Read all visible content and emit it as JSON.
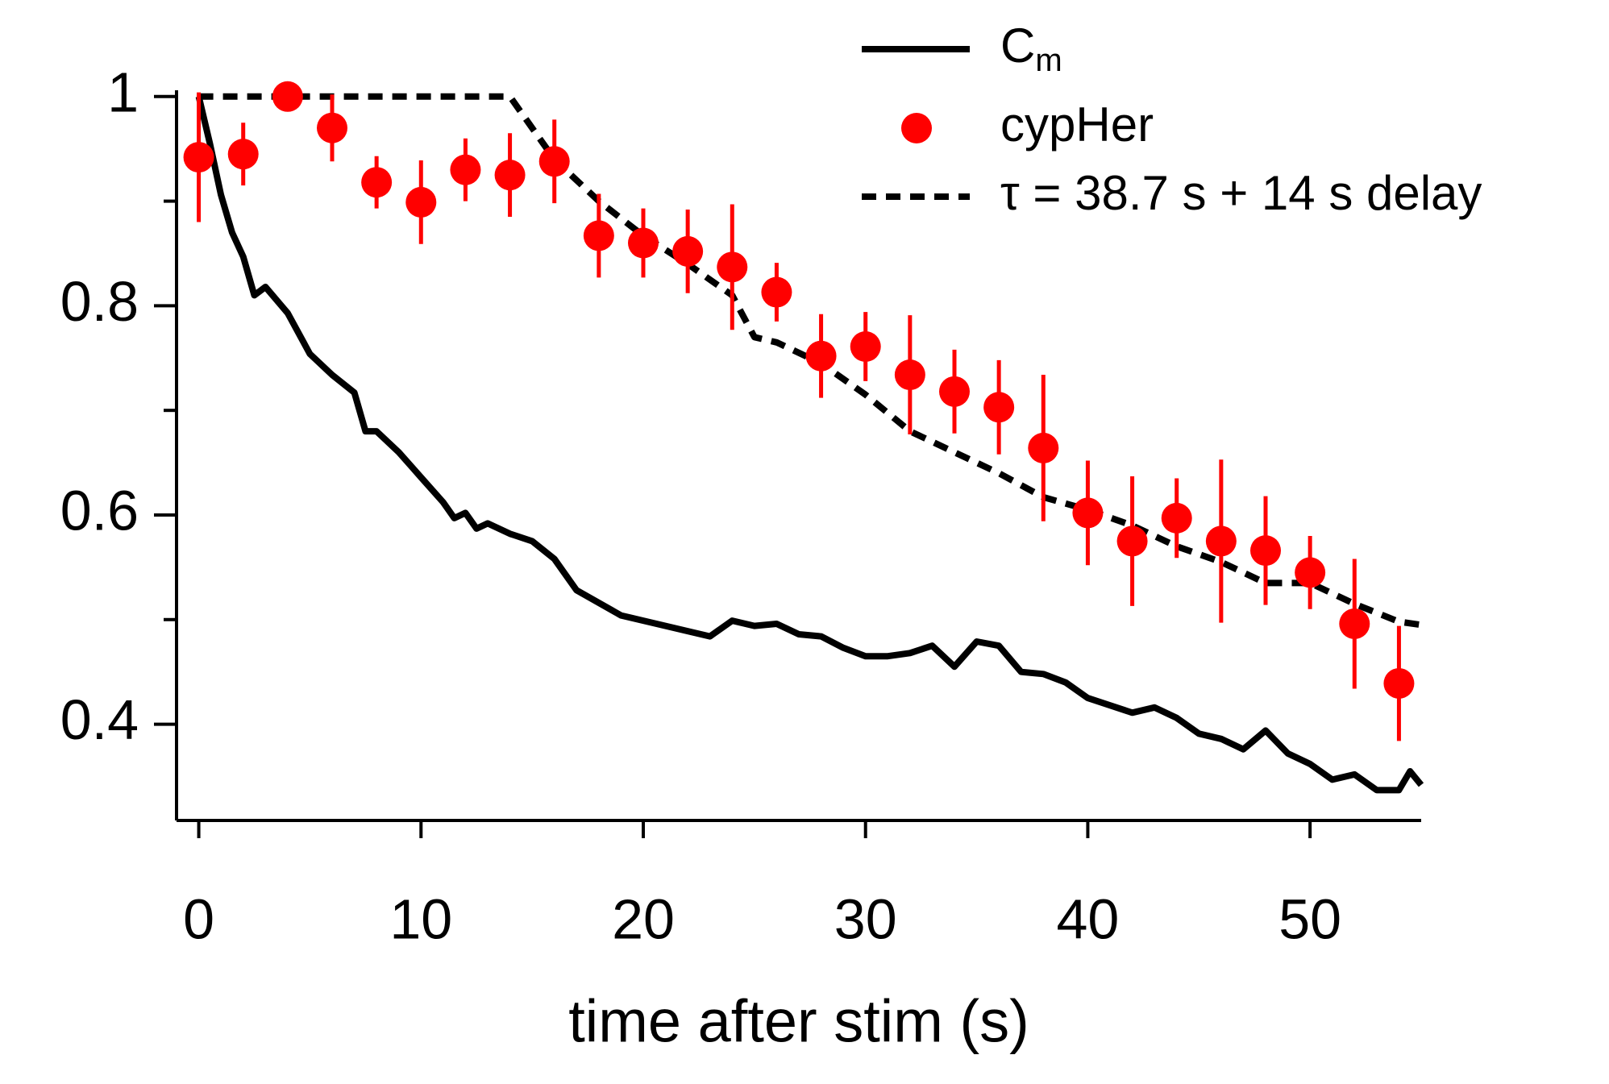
{
  "chart_data": {
    "type": "line",
    "xlabel": "time after stim (s)",
    "xlim": [
      -1,
      55
    ],
    "xticks": [
      0,
      10,
      20,
      30,
      40,
      50
    ],
    "ylim": [
      0.308,
      1.006
    ],
    "yticks": [
      0.4,
      0.6,
      0.8,
      1.0
    ],
    "yminorticks": [
      0.5,
      0.7,
      0.9
    ],
    "grid": false,
    "legend": "top right",
    "series": [
      {
        "name": "Cm",
        "color": "#000000",
        "style": "solid",
        "x": [
          0,
          0.5,
          1,
          1.5,
          2,
          2.5,
          3,
          4,
          5,
          6,
          7,
          7.5,
          8,
          9,
          10,
          11,
          11.5,
          12,
          12.5,
          13,
          14,
          15,
          16,
          17,
          18,
          19,
          20,
          21,
          22,
          23,
          24,
          25,
          26,
          27,
          28,
          29,
          30,
          31,
          32,
          33,
          34,
          35,
          36,
          37,
          38,
          39,
          40,
          41,
          42,
          43,
          44,
          45,
          46,
          47,
          48,
          49,
          50,
          51,
          52,
          53,
          54,
          54.5,
          55
        ],
        "values": [
          1.0,
          0.955,
          0.906,
          0.87,
          0.847,
          0.81,
          0.818,
          0.793,
          0.754,
          0.734,
          0.717,
          0.68,
          0.68,
          0.66,
          0.636,
          0.612,
          0.597,
          0.602,
          0.587,
          0.592,
          0.582,
          0.575,
          0.558,
          0.528,
          0.516,
          0.504,
          0.499,
          0.494,
          0.489,
          0.484,
          0.499,
          0.494,
          0.496,
          0.486,
          0.484,
          0.473,
          0.465,
          0.465,
          0.468,
          0.475,
          0.455,
          0.479,
          0.475,
          0.45,
          0.448,
          0.44,
          0.425,
          0.418,
          0.411,
          0.416,
          0.406,
          0.391,
          0.386,
          0.376,
          0.394,
          0.372,
          0.362,
          0.347,
          0.352,
          0.337,
          0.337,
          0.355,
          0.342
        ]
      },
      {
        "name": "cypHer",
        "color": "#ff0000",
        "style": "markers",
        "x": [
          0,
          2,
          4,
          6,
          8,
          10,
          12,
          14,
          16,
          18,
          20,
          22,
          24,
          26,
          28,
          30,
          32,
          34,
          36,
          38,
          40,
          42,
          44,
          46,
          48,
          50,
          52,
          54
        ],
        "values": [
          0.942,
          0.945,
          1.0,
          0.97,
          0.918,
          0.899,
          0.93,
          0.925,
          0.938,
          0.867,
          0.86,
          0.852,
          0.837,
          0.813,
          0.752,
          0.761,
          0.734,
          0.718,
          0.703,
          0.664,
          0.602,
          0.575,
          0.597,
          0.575,
          0.566,
          0.545,
          0.496,
          0.439
        ],
        "errors": [
          0.062,
          0.03,
          0.0,
          0.032,
          0.025,
          0.04,
          0.03,
          0.04,
          0.04,
          0.04,
          0.033,
          0.04,
          0.06,
          0.028,
          0.04,
          0.033,
          0.057,
          0.04,
          0.045,
          0.07,
          0.05,
          0.062,
          0.038,
          0.078,
          0.052,
          0.035,
          0.062,
          0.055
        ]
      },
      {
        "name": "τ = 38.7 s + 14 s delay",
        "color": "#000000",
        "style": "dashed",
        "x": [
          0,
          14,
          16,
          18,
          20,
          22,
          24,
          25,
          26,
          28,
          30,
          32,
          34,
          36,
          38,
          40,
          42,
          44,
          46,
          48,
          50,
          52,
          54,
          55
        ],
        "values": [
          1.0,
          1.0,
          0.94,
          0.9,
          0.867,
          0.84,
          0.81,
          0.77,
          0.765,
          0.745,
          0.715,
          0.68,
          0.66,
          0.64,
          0.617,
          0.605,
          0.59,
          0.57,
          0.555,
          0.535,
          0.535,
          0.515,
          0.498,
          0.495
        ]
      }
    ]
  }
}
